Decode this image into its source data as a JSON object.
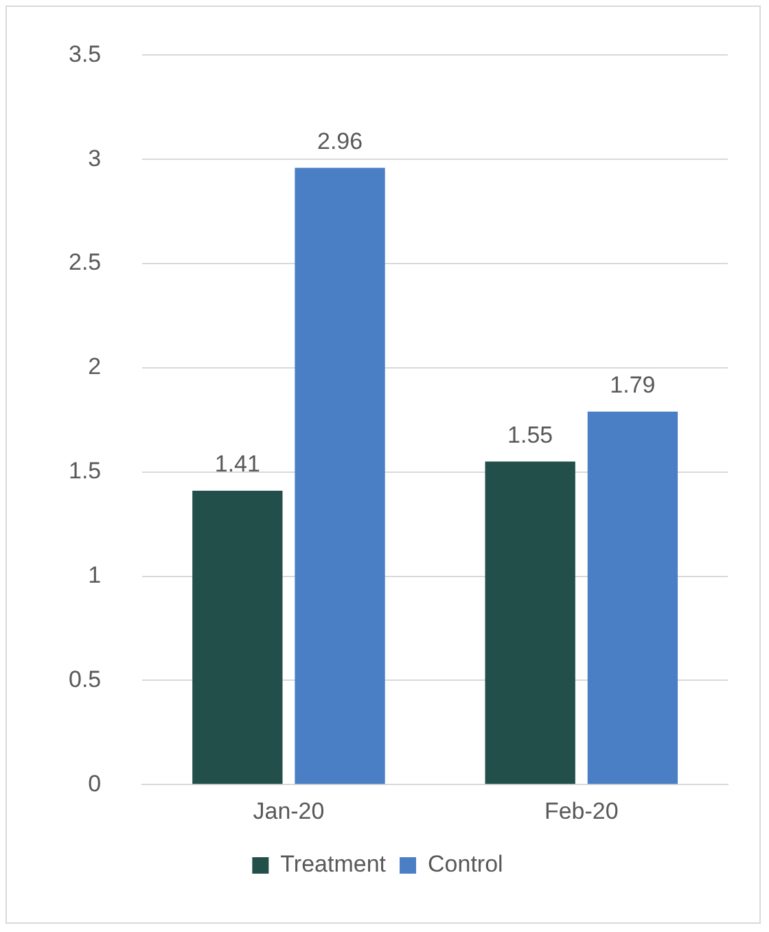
{
  "chart_data": {
    "type": "bar",
    "categories": [
      "Jan-20",
      "Feb-20"
    ],
    "series": [
      {
        "name": "Treatment",
        "color": "#234f4b",
        "values": [
          1.41,
          1.55
        ]
      },
      {
        "name": "Control",
        "color": "#4a7fc6",
        "values": [
          2.96,
          1.79
        ]
      }
    ],
    "ylim": [
      0,
      3.5
    ],
    "yticks": [
      0,
      0.5,
      1,
      1.5,
      2,
      2.5,
      3,
      3.5
    ],
    "grid": "y",
    "legend": "bottom",
    "data_labels": true
  }
}
